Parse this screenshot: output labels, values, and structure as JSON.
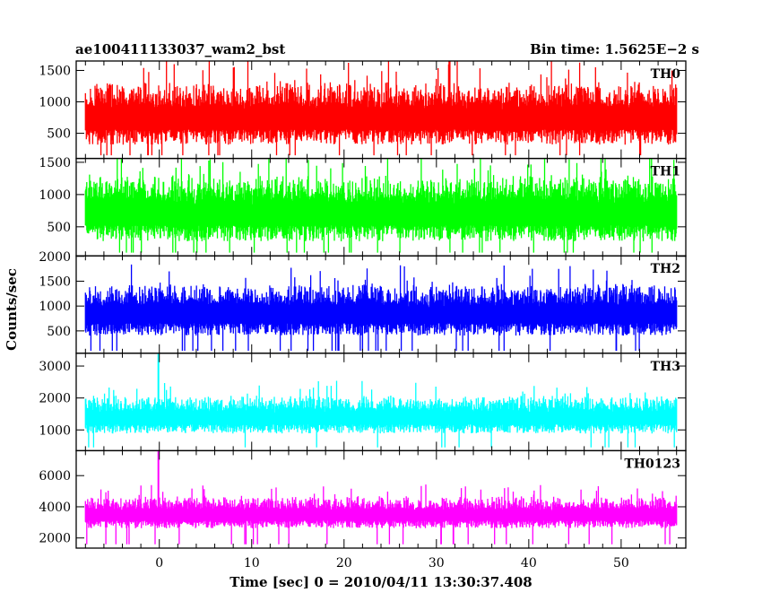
{
  "header": {
    "left_title": "ae100411133037_wam2_bst",
    "right_title": "Bin time: 1.5625E−2 s"
  },
  "chart_data": {
    "type": "line",
    "title": "ae100411133037_wam2_bst",
    "subtitle": "Bin time: 1.5625E−2 s",
    "xlabel": "Time [sec] 0 = 2010/04/11 13:30:37.408",
    "ylabel": "Counts/sec",
    "xlim": [
      -9,
      57
    ],
    "data_x_range": [
      -8,
      56
    ],
    "x_ticks": [
      0,
      10,
      20,
      30,
      40,
      50
    ],
    "grid": false,
    "legend": "none",
    "panels": [
      {
        "name": "TH0",
        "color": "#ff0000",
        "ylim": [
          100,
          1650
        ],
        "y_ticks": [
          500,
          1000,
          1500
        ],
        "baseline": 750,
        "spread": 320,
        "low": 150,
        "high": 1650,
        "spike_at": null,
        "spike_value": null
      },
      {
        "name": "TH1",
        "color": "#00ff00",
        "ylim": [
          50,
          1560
        ],
        "y_ticks": [
          500,
          1000,
          1500
        ],
        "baseline": 720,
        "spread": 330,
        "low": 100,
        "high": 1560,
        "spike_at": null,
        "spike_value": null
      },
      {
        "name": "TH2",
        "color": "#0000ff",
        "ylim": [
          50,
          2010
        ],
        "y_ticks": [
          500,
          1000,
          1500,
          2000
        ],
        "baseline": 850,
        "spread": 330,
        "low": 100,
        "high": 2010,
        "spike_at": null,
        "spike_value": null
      },
      {
        "name": "TH3",
        "color": "#00ffff",
        "ylim": [
          350,
          3400
        ],
        "y_ticks": [
          1000,
          2000,
          3000
        ],
        "baseline": 1400,
        "spread": 380,
        "low": 450,
        "high": 3400,
        "spike_at": -0.1,
        "spike_value": 3400
      },
      {
        "name": "TH0123",
        "color": "#ff00ff",
        "ylim": [
          1350,
          7600
        ],
        "y_ticks": [
          2000,
          4000,
          6000
        ],
        "baseline": 3500,
        "spread": 650,
        "low": 1600,
        "high": 7600,
        "spike_at": -0.1,
        "spike_value": 7600
      }
    ]
  }
}
